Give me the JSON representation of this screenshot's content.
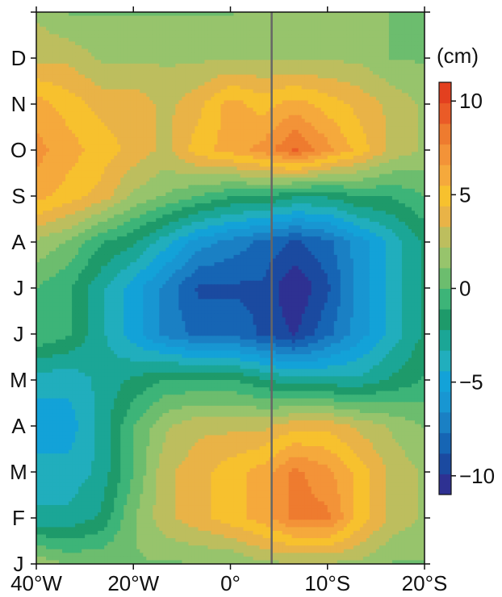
{
  "chart_data": {
    "type": "heatmap",
    "title": "",
    "xlabel": "",
    "ylabel": "",
    "x_ticks": [
      "40°W",
      "20°W",
      "0°",
      "10°S",
      "20°S"
    ],
    "x_tick_values": [
      -40,
      -20,
      0,
      20,
      40
    ],
    "y_ticks": [
      "J",
      "F",
      "M",
      "A",
      "M",
      "J",
      "J",
      "A",
      "S",
      "O",
      "N",
      "D"
    ],
    "x_range": [
      -40,
      40
    ],
    "y_range": [
      0,
      12
    ],
    "vertical_line_x": 8.5,
    "colorbar": {
      "unit": "(cm)",
      "range": [
        -11,
        11
      ],
      "ticks": [
        10,
        5,
        0,
        -5,
        -10
      ],
      "tick_labels": [
        "10",
        "5",
        "0",
        "−5",
        "−10"
      ],
      "colors": [
        "#2e3192",
        "#1b4aa0",
        "#1665b4",
        "#1a80c4",
        "#1896d2",
        "#13a2d8",
        "#21aebd",
        "#1ba696",
        "#1e9a6a",
        "#3db478",
        "#6cbd6e",
        "#97c46c",
        "#bdbe5e",
        "#e9b347",
        "#f7c12e",
        "#f5a93c",
        "#f39338",
        "#ee7b2f",
        "#ea5b27",
        "#e3401f"
      ]
    },
    "grid": {
      "x": [
        -40,
        -33.3,
        -26.7,
        -20,
        -13.3,
        -6.7,
        0,
        6.7,
        13.3,
        20,
        26.7,
        33.3,
        40
      ],
      "y": [
        0,
        1,
        2,
        3,
        4,
        5,
        6,
        7,
        8,
        9,
        10,
        11,
        12
      ],
      "z": [
        [
          2,
          1,
          1,
          1,
          1,
          1,
          1,
          2,
          2,
          2,
          2,
          1,
          1
        ],
        [
          -3,
          -3,
          -2,
          1,
          3,
          4,
          5,
          6,
          8,
          8,
          5,
          3,
          2
        ],
        [
          -4,
          -4,
          -3,
          0,
          3,
          4,
          5,
          6,
          8,
          7,
          5,
          3,
          2
        ],
        [
          -5,
          -5,
          -3,
          0,
          2,
          3,
          3,
          3,
          4,
          4,
          3,
          2,
          1
        ],
        [
          -4,
          -4,
          -3,
          -2,
          -1,
          -1,
          -1,
          -2,
          -3,
          -3,
          -3,
          -2,
          -1
        ],
        [
          0,
          -1,
          -3,
          -5,
          -7,
          -8,
          -8,
          -9,
          -10,
          -8,
          -6,
          -4,
          -2
        ],
        [
          0,
          -1,
          -3,
          -5,
          -7,
          -9,
          -9,
          -9,
          -11,
          -9,
          -6,
          -4,
          -2
        ],
        [
          2,
          1,
          -1,
          -2,
          -4,
          -6,
          -7,
          -8,
          -9,
          -8,
          -6,
          -4,
          -2
        ],
        [
          6,
          5,
          4,
          2,
          1,
          0,
          -1,
          -1,
          -2,
          -2,
          -1,
          -1,
          0
        ],
        [
          7,
          6,
          5,
          4,
          3,
          5,
          6,
          7,
          9,
          7,
          5,
          3,
          2
        ],
        [
          6,
          5,
          4,
          4,
          3,
          4,
          6,
          5,
          6,
          5,
          4,
          3,
          2
        ],
        [
          3,
          3,
          2,
          2,
          2,
          2,
          2,
          2,
          2,
          2,
          2,
          1,
          1
        ],
        [
          2,
          1,
          1,
          1,
          1,
          1,
          1,
          2,
          2,
          2,
          2,
          1,
          1
        ]
      ]
    }
  }
}
